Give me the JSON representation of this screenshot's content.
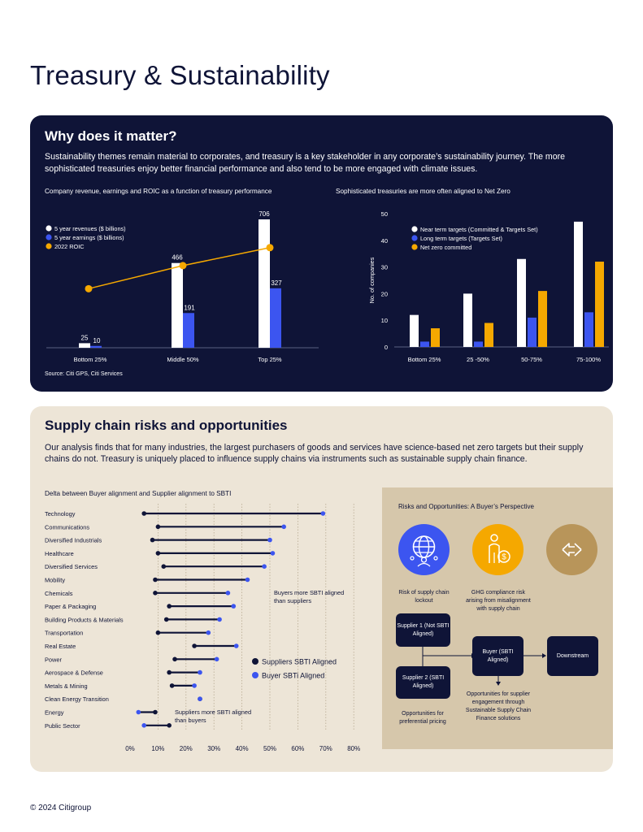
{
  "page": {
    "title": "Treasury & Sustainability",
    "footer": "© 2024 Citigroup"
  },
  "why": {
    "heading": "Why does it matter?",
    "intro": "Sustainability themes remain material to corporates, and treasury is a key stakeholder in any corporate’s sustainability journey. The more sophisticated treasuries enjoy better financial performance and also tend to be more engaged with climate issues.",
    "source": "Source: Citi GPS, Citi Services"
  },
  "supply": {
    "heading": "Supply chain risks and opportunities",
    "intro": "Our analysis finds that for many industries, the largest purchasers of goods and services have science-based net zero targets but their supply chains do not. Treasury is uniquely placed to influence supply chains via instruments such as sustainable supply chain finance."
  },
  "rop": {
    "title": "Risks and Opportunities: A Buyer’s Perspective",
    "risk_lockout": "Risk of supply chain lockout",
    "ghg": "GHG compliance risk arising from misalignment with supply chain",
    "supplier1": "Supplier 1 (Not SBTI Aligned)",
    "supplier2": "Supplier 2 (SBTI Aligned)",
    "buyer": "Buyer (SBTI Aligned)",
    "downstream": "Downstream",
    "preferential": "Opportunities for preferential pricing",
    "engagement": "Opportunities for supplier engagement through Sustainable Supply Chain Finance solutions"
  },
  "colors": {
    "navy": "#0f1437",
    "blue": "#3c55f0",
    "amber": "#f5a800",
    "beige": "#ede5d7",
    "tan": "#d6c7ab",
    "bronze": "#b8955a"
  },
  "icons": [
    "globe-network-icon",
    "person-coin-icon",
    "exchange-arrows-icon"
  ],
  "chart_data": [
    {
      "type": "bar",
      "title": "Company revenue, earnings and ROIC as a function of treasury performance",
      "categories": [
        "Bottom 25%",
        "Middle 50%",
        "Top 25%"
      ],
      "series": [
        {
          "name": "5 year revenues ($ billions)",
          "values": [
            25,
            466,
            706
          ],
          "labels": [
            "25",
            "466",
            "706"
          ]
        },
        {
          "name": "5 year earnings ($ billions)",
          "values": [
            10,
            191,
            327
          ],
          "labels": [
            "10",
            "191",
            "327"
          ]
        },
        {
          "name": "2022 ROIC",
          "type": "line",
          "values": [
            0.46,
            0.64,
            0.78
          ]
        }
      ],
      "ylim": [
        0,
        706
      ],
      "legend": "top-left"
    },
    {
      "type": "bar",
      "title": "Sophisticated treasuries are more often aligned to Net Zero",
      "ylabel": "No. of companies",
      "yticks": [
        "50",
        "40",
        "30",
        "20",
        "10",
        "0"
      ],
      "ylim": [
        0,
        50
      ],
      "categories": [
        "Bottom 25%",
        "25 -50%",
        "50-75%",
        "75-100%"
      ],
      "series": [
        {
          "name": "Near term targets (Committed & Targets Set)",
          "values": [
            12,
            20,
            33,
            47
          ]
        },
        {
          "name": "Long term targets (Targets Set)",
          "values": [
            2,
            2,
            11,
            13
          ]
        },
        {
          "name": "Net zero committed",
          "values": [
            7,
            9,
            21,
            32
          ]
        }
      ],
      "legend": "top-left"
    },
    {
      "type": "scatter",
      "title": "Delta between Buyer alignment and Supplier alignment to SBTI",
      "categories": [
        "Technology",
        "Communications",
        "Diversified Industrials",
        "Healthcare",
        "Diversified Services",
        "Mobility",
        "Chemicals",
        "Paper & Packaging",
        "Building Products & Materials",
        "Transportation",
        "Real Estate",
        "Power",
        "Aerospace & Defense",
        "Metals & Mining",
        "Clean Energy Transition",
        "Energy",
        "Public Sector"
      ],
      "series": [
        {
          "name": "Suppliers SBTI Aligned",
          "values": [
            5,
            10,
            8,
            10,
            12,
            9,
            9,
            14,
            13,
            10,
            23,
            16,
            14,
            15,
            25,
            9,
            14
          ]
        },
        {
          "name": "Buyer SBTi Aligned",
          "values": [
            69,
            55,
            50,
            51,
            48,
            42,
            35,
            37,
            32,
            28,
            38,
            31,
            25,
            23,
            25,
            3,
            5
          ]
        }
      ],
      "xticks": [
        "0%",
        "10%",
        "20%",
        "30%",
        "40%",
        "50%",
        "60%",
        "70%",
        "80%"
      ],
      "xlim": [
        0,
        80
      ],
      "annotations": [
        "Buyers more SBTI aligned than suppliers",
        "Suppliers more SBTI aligned than buyers"
      ]
    }
  ]
}
